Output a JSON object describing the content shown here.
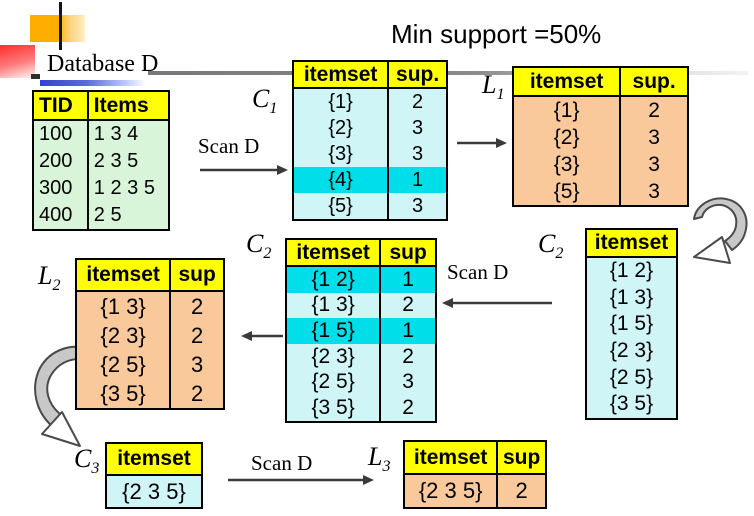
{
  "labels": {
    "database": "Database D",
    "min_support": "Min support =50%",
    "scan_d": "Scan D",
    "c1": {
      "base": "C",
      "sub": "1"
    },
    "l1": {
      "base": "L",
      "sub": "1"
    },
    "c2": {
      "base": "C",
      "sub": "2"
    },
    "l2": {
      "base": "L",
      "sub": "2"
    },
    "c3": {
      "base": "C",
      "sub": "3"
    },
    "l3": {
      "base": "L",
      "sub": "3"
    }
  },
  "tables": {
    "db": {
      "headers": [
        "TID",
        "Items"
      ],
      "rows": [
        [
          "100",
          "1 3 4"
        ],
        [
          "200",
          "2 3 5"
        ],
        [
          "300",
          "1 2 3 5"
        ],
        [
          "400",
          "2 5"
        ]
      ]
    },
    "c1": {
      "headers": [
        "itemset",
        "sup."
      ],
      "rows": [
        [
          "{1}",
          "2"
        ],
        [
          "{2}",
          "3"
        ],
        [
          "{3}",
          "3"
        ],
        [
          "{4}",
          "1"
        ],
        [
          "{5}",
          "3"
        ]
      ],
      "highlighted_rows": [
        3
      ]
    },
    "l1": {
      "headers": [
        "itemset",
        "sup."
      ],
      "rows": [
        [
          "{1}",
          "2"
        ],
        [
          "{2}",
          "3"
        ],
        [
          "{3}",
          "3"
        ],
        [
          "{5}",
          "3"
        ]
      ]
    },
    "c2_counts": {
      "headers": [
        "itemset",
        "sup"
      ],
      "rows": [
        [
          "{1 2}",
          "1"
        ],
        [
          "{1 3}",
          "2"
        ],
        [
          "{1 5}",
          "1"
        ],
        [
          "{2 3}",
          "2"
        ],
        [
          "{2 5}",
          "3"
        ],
        [
          "{3 5}",
          "2"
        ]
      ],
      "highlighted_rows": [
        0,
        2
      ]
    },
    "c2_candidates": {
      "headers": [
        "itemset"
      ],
      "rows": [
        [
          "{1 2}"
        ],
        [
          "{1 3}"
        ],
        [
          "{1 5}"
        ],
        [
          "{2 3}"
        ],
        [
          "{2 5}"
        ],
        [
          "{3 5}"
        ]
      ]
    },
    "l2": {
      "headers": [
        "itemset",
        "sup"
      ],
      "rows": [
        [
          "{1 3}",
          "2"
        ],
        [
          "{2 3}",
          "2"
        ],
        [
          "{2 5}",
          "3"
        ],
        [
          "{3 5}",
          "2"
        ]
      ]
    },
    "c3": {
      "headers": [
        "itemset"
      ],
      "rows": [
        [
          "{2 3 5}"
        ]
      ]
    },
    "l3": {
      "headers": [
        "itemset",
        "sup"
      ],
      "rows": [
        [
          "{2 3 5}",
          "2"
        ]
      ]
    }
  },
  "colors": {
    "header_yellow": "#ffff00",
    "green_row": "#d9f5d9",
    "cyan_row": "#cff5f7",
    "cyan_highlight": "#00dfe9",
    "orange_row": "#f9c99b",
    "table_border": "#000000",
    "arrow_color": "#3a3a3a",
    "curved_arrow_fill": "#c8c8c8",
    "curved_arrow_stroke": "#4a4a4a"
  }
}
